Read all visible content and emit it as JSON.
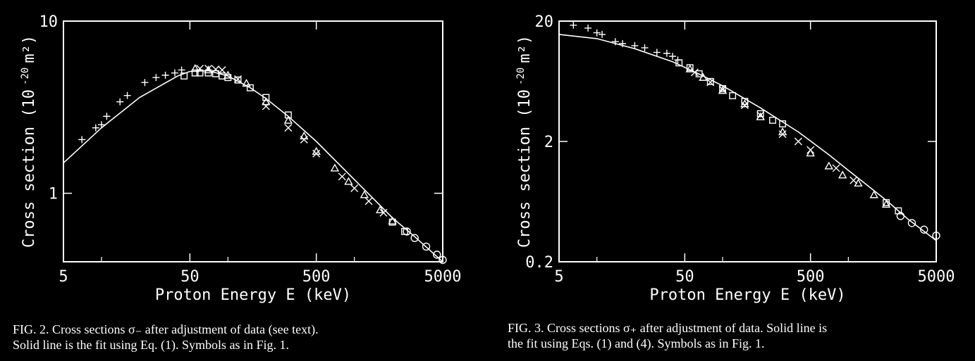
{
  "chart_data": [
    {
      "type": "scatter",
      "figure": "FIG. 2",
      "xlabel": "Proton Energy E (keV)",
      "ylabel": "Cross section (10 -20 m²)",
      "ylabel_parts": {
        "main": "Cross section (10",
        "exp": "-20",
        "unit": "m²)"
      },
      "x_scale": "log",
      "y_scale": "log",
      "xlim": [
        5,
        5000
      ],
      "ylim": [
        0.4,
        10
      ],
      "x_ticks": [
        {
          "v": 5,
          "label": "5"
        },
        {
          "v": 50,
          "label": "50"
        },
        {
          "v": 500,
          "label": "500"
        },
        {
          "v": 5000,
          "label": "5000"
        }
      ],
      "y_ticks": [
        {
          "v": 1,
          "label": "1"
        },
        {
          "v": 10,
          "label": "10"
        }
      ],
      "series": [
        {
          "marker": "plus",
          "points": [
            [
              7,
              2.05
            ],
            [
              9,
              2.4
            ],
            [
              10,
              2.5
            ],
            [
              11,
              2.8
            ],
            [
              14,
              3.4
            ],
            [
              16,
              3.7
            ],
            [
              22,
              4.4
            ],
            [
              27,
              4.7
            ],
            [
              32,
              4.85
            ],
            [
              38,
              5.0
            ],
            [
              43,
              5.2
            ]
          ]
        },
        {
          "marker": "cross",
          "points": [
            [
              60,
              5.3
            ],
            [
              70,
              5.3
            ],
            [
              80,
              5.25
            ],
            [
              90,
              5.2
            ],
            [
              120,
              4.6
            ],
            [
              200,
              3.2
            ],
            [
              300,
              2.4
            ],
            [
              400,
              2.05
            ],
            [
              500,
              1.7
            ],
            [
              800,
              1.25
            ],
            [
              1000,
              1.07
            ],
            [
              1300,
              0.9
            ],
            [
              1700,
              0.77
            ]
          ]
        },
        {
          "marker": "triangle",
          "points": [
            [
              55,
              5.3
            ],
            [
              70,
              5.2
            ],
            [
              100,
              4.85
            ],
            [
              140,
              4.35
            ],
            [
              200,
              3.4
            ],
            [
              300,
              2.65
            ],
            [
              400,
              2.15
            ],
            [
              500,
              1.75
            ],
            [
              700,
              1.4
            ],
            [
              900,
              1.17
            ],
            [
              1200,
              0.98
            ],
            [
              1600,
              0.8
            ],
            [
              2000,
              0.69
            ]
          ]
        },
        {
          "marker": "square",
          "points": [
            [
              45,
              4.8
            ],
            [
              55,
              5.0
            ],
            [
              60,
              5.0
            ],
            [
              70,
              5.0
            ],
            [
              80,
              4.95
            ],
            [
              90,
              4.8
            ],
            [
              100,
              4.7
            ],
            [
              120,
              4.55
            ],
            [
              150,
              4.1
            ],
            [
              200,
              3.6
            ],
            [
              300,
              2.85
            ],
            [
              2000,
              0.68
            ],
            [
              2500,
              0.6
            ]
          ]
        },
        {
          "marker": "circle",
          "points": [
            [
              2600,
              0.6
            ],
            [
              3000,
              0.55
            ],
            [
              3700,
              0.49
            ],
            [
              4500,
              0.44
            ],
            [
              5000,
              0.41
            ]
          ]
        }
      ],
      "fit": [
        [
          5,
          1.5
        ],
        [
          10,
          2.4
        ],
        [
          20,
          3.6
        ],
        [
          40,
          4.8
        ],
        [
          50,
          5.1
        ],
        [
          70,
          5.15
        ],
        [
          100,
          4.8
        ],
        [
          150,
          4.1
        ],
        [
          200,
          3.55
        ],
        [
          300,
          2.8
        ],
        [
          500,
          2.0
        ],
        [
          1000,
          1.2
        ],
        [
          2000,
          0.72
        ],
        [
          3000,
          0.56
        ],
        [
          5000,
          0.4
        ]
      ],
      "caption_lines": [
        "FIG. 2.  Cross sections σ₋ after adjustment of data (see text).",
        "Solid line is the fit using Eq. (1).  Symbols as in Fig. 1."
      ]
    },
    {
      "type": "scatter",
      "figure": "FIG. 3",
      "xlabel": "Proton Energy E (keV)",
      "ylabel": "Cross section (10 -20 m²)",
      "ylabel_parts": {
        "main": "Cross section (10",
        "exp": "-20",
        "unit": "m²)"
      },
      "x_scale": "log",
      "y_scale": "log",
      "xlim": [
        5,
        5000
      ],
      "ylim": [
        0.2,
        20
      ],
      "x_ticks": [
        {
          "v": 5,
          "label": "5"
        },
        {
          "v": 50,
          "label": "50"
        },
        {
          "v": 500,
          "label": "500"
        },
        {
          "v": 5000,
          "label": "5000"
        }
      ],
      "y_ticks": [
        {
          "v": 0.2,
          "label": "0.2"
        },
        {
          "v": 2,
          "label": "2"
        },
        {
          "v": 20,
          "label": "20"
        }
      ],
      "series": [
        {
          "marker": "plus",
          "points": [
            [
              6.5,
              18.5
            ],
            [
              8.5,
              17.5
            ],
            [
              10,
              16
            ],
            [
              11,
              15.5
            ],
            [
              14,
              13.5
            ],
            [
              16,
              13
            ],
            [
              20,
              12.5
            ],
            [
              24,
              12
            ],
            [
              30,
              11
            ],
            [
              36,
              10.8
            ],
            [
              40,
              10.2
            ],
            [
              44,
              9.5
            ]
          ]
        },
        {
          "marker": "cross",
          "points": [
            [
              60,
              7.5
            ],
            [
              80,
              6.2
            ],
            [
              100,
              5.4
            ],
            [
              150,
              4.0
            ],
            [
              200,
              3.3
            ],
            [
              300,
              2.3
            ],
            [
              400,
              2.0
            ],
            [
              500,
              1.7
            ],
            [
              800,
              1.2
            ],
            [
              1100,
              0.95
            ]
          ]
        },
        {
          "marker": "triangle",
          "points": [
            [
              55,
              8.0
            ],
            [
              70,
              6.8
            ],
            [
              100,
              5.3
            ],
            [
              150,
              4.1
            ],
            [
              200,
              3.2
            ],
            [
              300,
              2.4
            ],
            [
              500,
              1.6
            ],
            [
              700,
              1.25
            ],
            [
              900,
              1.05
            ],
            [
              1200,
              0.9
            ],
            [
              1600,
              0.72
            ],
            [
              2000,
              0.6
            ]
          ]
        },
        {
          "marker": "square",
          "points": [
            [
              45,
              9.0
            ],
            [
              55,
              8.2
            ],
            [
              65,
              7.3
            ],
            [
              80,
              6.3
            ],
            [
              100,
              5.5
            ],
            [
              120,
              4.8
            ],
            [
              150,
              4.3
            ],
            [
              200,
              3.4
            ],
            [
              250,
              3.0
            ],
            [
              300,
              2.8
            ],
            [
              2000,
              0.62
            ],
            [
              2500,
              0.53
            ]
          ]
        },
        {
          "marker": "circle",
          "points": [
            [
              2600,
              0.48
            ],
            [
              3200,
              0.42
            ],
            [
              4000,
              0.37
            ],
            [
              5000,
              0.33
            ]
          ]
        }
      ],
      "fit": [
        [
          5,
          15.5
        ],
        [
          10,
          14.3
        ],
        [
          20,
          11.8
        ],
        [
          40,
          9.2
        ],
        [
          70,
          7.0
        ],
        [
          100,
          5.8
        ],
        [
          200,
          3.8
        ],
        [
          400,
          2.4
        ],
        [
          700,
          1.55
        ],
        [
          1000,
          1.15
        ],
        [
          2000,
          0.65
        ],
        [
          3000,
          0.45
        ],
        [
          5000,
          0.3
        ]
      ],
      "caption_lines": [
        "FIG. 3.  Cross sections σ₊ after adjustment of data.  Solid line is",
        "the fit using Eqs. (1) and (4).  Symbols as in Fig. 1."
      ]
    }
  ]
}
